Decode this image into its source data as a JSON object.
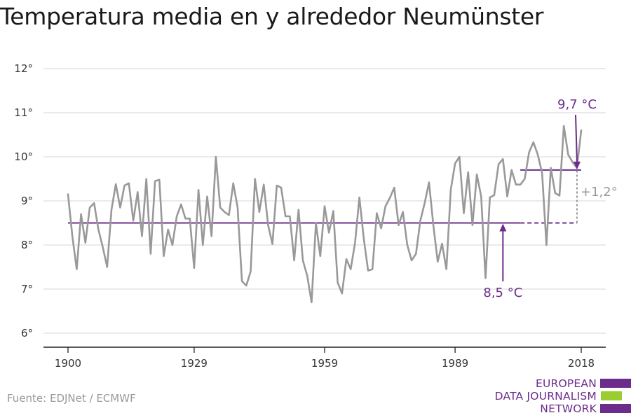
{
  "title": "Temperatura media en y alrededor Neumünster",
  "source": "Fuente: EDJNet / ECMWF",
  "logo": {
    "lines": [
      "EUROPEAN",
      "DATA JOURNALISM",
      "NETWORK"
    ],
    "colors": [
      "#6c2c8c",
      "#9acd32",
      "#6c2c8c"
    ]
  },
  "colors": {
    "series": "#999999",
    "reference": "#6c2c8c",
    "difference": "#999999",
    "grid": "#dddddd",
    "axis": "#222222"
  },
  "chart_data": {
    "type": "line",
    "title": "Temperatura media en y alrededor Neumünster",
    "xlabel": "",
    "ylabel": "",
    "xlim": [
      1900,
      2018
    ],
    "ylim": [
      6,
      12
    ],
    "x_ticks": [
      1900,
      1929,
      1959,
      1989,
      2018
    ],
    "y_ticks": [
      {
        "value": 6,
        "label": "6°"
      },
      {
        "value": 7,
        "label": "7°"
      },
      {
        "value": 8,
        "label": "8°"
      },
      {
        "value": 9,
        "label": "9°"
      },
      {
        "value": 10,
        "label": "10°"
      },
      {
        "value": 11,
        "label": "11°"
      },
      {
        "value": 12,
        "label": "12°"
      }
    ],
    "grid": true,
    "x": [
      1900,
      1901,
      1902,
      1903,
      1904,
      1905,
      1906,
      1907,
      1908,
      1909,
      1910,
      1911,
      1912,
      1913,
      1914,
      1915,
      1916,
      1917,
      1918,
      1919,
      1920,
      1921,
      1922,
      1923,
      1924,
      1925,
      1926,
      1927,
      1928,
      1929,
      1930,
      1931,
      1932,
      1933,
      1934,
      1935,
      1936,
      1937,
      1938,
      1939,
      1940,
      1941,
      1942,
      1943,
      1944,
      1945,
      1946,
      1947,
      1948,
      1949,
      1950,
      1951,
      1952,
      1953,
      1954,
      1955,
      1956,
      1957,
      1958,
      1959,
      1960,
      1961,
      1962,
      1963,
      1964,
      1965,
      1966,
      1967,
      1968,
      1969,
      1970,
      1971,
      1972,
      1973,
      1974,
      1975,
      1976,
      1977,
      1978,
      1979,
      1980,
      1981,
      1982,
      1983,
      1984,
      1985,
      1986,
      1987,
      1988,
      1989,
      1990,
      1991,
      1992,
      1993,
      1994,
      1995,
      1996,
      1997,
      1998,
      1999,
      2000,
      2001,
      2002,
      2003,
      2004,
      2005,
      2006,
      2007,
      2008,
      2009,
      2010,
      2011,
      2012,
      2013,
      2014,
      2015,
      2016,
      2017,
      2018
    ],
    "series": [
      {
        "values": [
          9.15,
          8.2,
          7.45,
          8.7,
          8.05,
          8.85,
          8.95,
          8.35,
          7.95,
          7.5,
          8.8,
          9.38,
          8.85,
          9.35,
          9.4,
          8.55,
          9.2,
          8.2,
          9.5,
          7.8,
          9.45,
          9.48,
          7.75,
          8.35,
          8.0,
          8.65,
          8.92,
          8.6,
          8.6,
          7.48,
          9.25,
          8.0,
          9.1,
          8.2,
          10.0,
          8.85,
          8.75,
          8.68,
          9.4,
          8.85,
          7.18,
          7.08,
          7.4,
          9.5,
          8.75,
          9.37,
          8.45,
          8.02,
          9.35,
          9.3,
          8.65,
          8.65,
          7.65,
          8.8,
          7.65,
          7.3,
          6.7,
          8.5,
          7.75,
          8.88,
          8.28,
          8.77,
          7.15,
          6.9,
          7.68,
          7.45,
          8.05,
          9.08,
          8.15,
          7.42,
          7.45,
          8.72,
          8.38,
          8.88,
          9.07,
          9.3,
          8.45,
          8.75,
          8.0,
          7.65,
          7.8,
          8.55,
          8.95,
          9.42,
          8.45,
          7.62,
          8.03,
          7.45,
          9.25,
          9.85,
          10.0,
          8.72,
          9.65,
          8.45,
          9.6,
          9.1,
          7.25,
          9.08,
          9.13,
          9.83,
          9.95,
          9.1,
          9.7,
          9.37,
          9.37,
          9.5,
          10.1,
          10.33,
          10.05,
          9.63,
          8.0,
          9.75,
          9.18,
          9.12,
          10.7,
          10.05,
          9.88,
          9.75,
          10.6
        ]
      }
    ],
    "reference_lines": [
      {
        "label": "8,5 °C",
        "value": 8.5,
        "from": 1900,
        "to": 2018,
        "style": "solid to 2004, dashed after"
      },
      {
        "label": "9,7 °C",
        "value": 9.7,
        "from": 2004,
        "to": 2018,
        "style": "solid"
      }
    ],
    "difference_label": "+1,2°"
  }
}
